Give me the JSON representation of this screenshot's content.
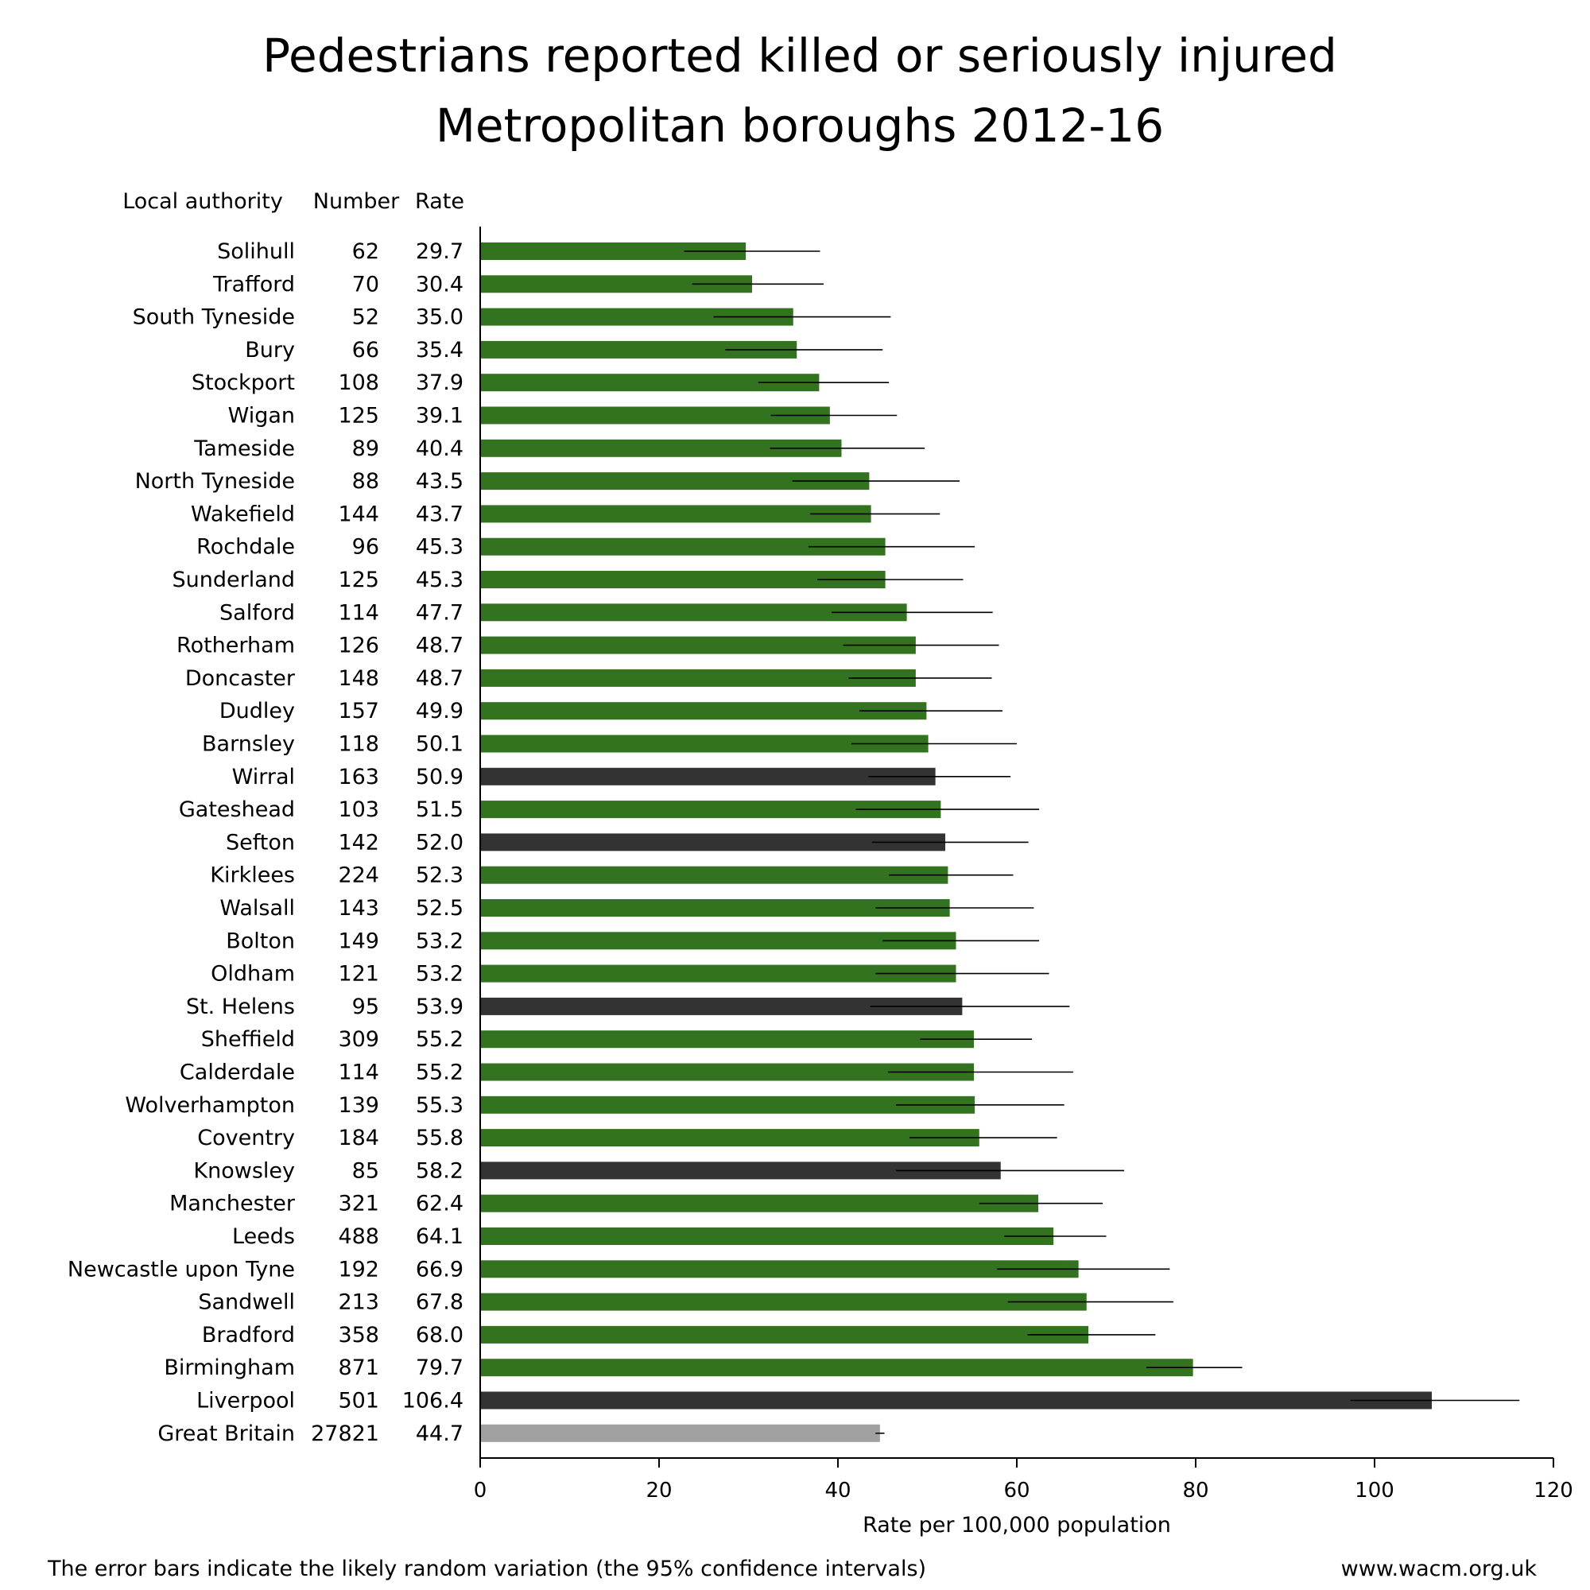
{
  "chart_data": {
    "type": "bar",
    "orientation": "horizontal",
    "title": "Pedestrians reported killed or seriously injured",
    "subtitle": "Metropolitan boroughs 2012-16",
    "columns": {
      "authority": "Local authority",
      "number": "Number",
      "rate": "Rate"
    },
    "xlabel": "Rate per 100,000 population",
    "xlim": [
      0,
      120
    ],
    "xticks": [
      "0",
      "20",
      "40",
      "60",
      "80",
      "100",
      "120"
    ],
    "grid": false,
    "legend": "none",
    "colors": {
      "borough": "#33731f",
      "highlighted": "#333333",
      "national": "#a0a0a0",
      "error_bar": "#000000"
    },
    "rows": [
      {
        "name": "Solihull",
        "number": "62",
        "rate": 29.7,
        "rate_label": "29.7",
        "ci": [
          22.8,
          38.0
        ],
        "group": "borough"
      },
      {
        "name": "Trafford",
        "number": "70",
        "rate": 30.4,
        "rate_label": "30.4",
        "ci": [
          23.7,
          38.4
        ],
        "group": "borough"
      },
      {
        "name": "South Tyneside",
        "number": "52",
        "rate": 35.0,
        "rate_label": "35.0",
        "ci": [
          26.1,
          45.9
        ],
        "group": "borough"
      },
      {
        "name": "Bury",
        "number": "66",
        "rate": 35.4,
        "rate_label": "35.4",
        "ci": [
          27.4,
          45.0
        ],
        "group": "borough"
      },
      {
        "name": "Stockport",
        "number": "108",
        "rate": 37.9,
        "rate_label": "37.9",
        "ci": [
          31.1,
          45.7
        ],
        "group": "borough"
      },
      {
        "name": "Wigan",
        "number": "125",
        "rate": 39.1,
        "rate_label": "39.1",
        "ci": [
          32.5,
          46.6
        ],
        "group": "borough"
      },
      {
        "name": "Tameside",
        "number": "89",
        "rate": 40.4,
        "rate_label": "40.4",
        "ci": [
          32.4,
          49.7
        ],
        "group": "borough"
      },
      {
        "name": "North Tyneside",
        "number": "88",
        "rate": 43.5,
        "rate_label": "43.5",
        "ci": [
          34.9,
          53.6
        ],
        "group": "borough"
      },
      {
        "name": "Wakefield",
        "number": "144",
        "rate": 43.7,
        "rate_label": "43.7",
        "ci": [
          36.9,
          51.4
        ],
        "group": "borough"
      },
      {
        "name": "Rochdale",
        "number": "96",
        "rate": 45.3,
        "rate_label": "45.3",
        "ci": [
          36.7,
          55.3
        ],
        "group": "borough"
      },
      {
        "name": "Sunderland",
        "number": "125",
        "rate": 45.3,
        "rate_label": "45.3",
        "ci": [
          37.7,
          54.0
        ],
        "group": "borough"
      },
      {
        "name": "Salford",
        "number": "114",
        "rate": 47.7,
        "rate_label": "47.7",
        "ci": [
          39.3,
          57.3
        ],
        "group": "borough"
      },
      {
        "name": "Rotherham",
        "number": "126",
        "rate": 48.7,
        "rate_label": "48.7",
        "ci": [
          40.6,
          58.0
        ],
        "group": "borough"
      },
      {
        "name": "Doncaster",
        "number": "148",
        "rate": 48.7,
        "rate_label": "48.7",
        "ci": [
          41.2,
          57.2
        ],
        "group": "borough"
      },
      {
        "name": "Dudley",
        "number": "157",
        "rate": 49.9,
        "rate_label": "49.9",
        "ci": [
          42.4,
          58.4
        ],
        "group": "borough"
      },
      {
        "name": "Barnsley",
        "number": "118",
        "rate": 50.1,
        "rate_label": "50.1",
        "ci": [
          41.5,
          60.0
        ],
        "group": "borough"
      },
      {
        "name": "Wirral",
        "number": "163",
        "rate": 50.9,
        "rate_label": "50.9",
        "ci": [
          43.4,
          59.3
        ],
        "group": "highlighted"
      },
      {
        "name": "Gateshead",
        "number": "103",
        "rate": 51.5,
        "rate_label": "51.5",
        "ci": [
          42.0,
          62.5
        ],
        "group": "borough"
      },
      {
        "name": "Sefton",
        "number": "142",
        "rate": 52.0,
        "rate_label": "52.0",
        "ci": [
          43.8,
          61.3
        ],
        "group": "highlighted"
      },
      {
        "name": "Kirklees",
        "number": "224",
        "rate": 52.3,
        "rate_label": "52.3",
        "ci": [
          45.7,
          59.6
        ],
        "group": "borough"
      },
      {
        "name": "Walsall",
        "number": "143",
        "rate": 52.5,
        "rate_label": "52.5",
        "ci": [
          44.2,
          61.9
        ],
        "group": "borough"
      },
      {
        "name": "Bolton",
        "number": "149",
        "rate": 53.2,
        "rate_label": "53.2",
        "ci": [
          45.0,
          62.5
        ],
        "group": "borough"
      },
      {
        "name": "Oldham",
        "number": "121",
        "rate": 53.2,
        "rate_label": "53.2",
        "ci": [
          44.2,
          63.6
        ],
        "group": "borough"
      },
      {
        "name": "St. Helens",
        "number": "95",
        "rate": 53.9,
        "rate_label": "53.9",
        "ci": [
          43.6,
          65.9
        ],
        "group": "highlighted"
      },
      {
        "name": "Sheffield",
        "number": "309",
        "rate": 55.2,
        "rate_label": "55.2",
        "ci": [
          49.2,
          61.7
        ],
        "group": "borough"
      },
      {
        "name": "Calderdale",
        "number": "114",
        "rate": 55.2,
        "rate_label": "55.2",
        "ci": [
          45.6,
          66.3
        ],
        "group": "borough"
      },
      {
        "name": "Wolverhampton",
        "number": "139",
        "rate": 55.3,
        "rate_label": "55.3",
        "ci": [
          46.5,
          65.3
        ],
        "group": "borough"
      },
      {
        "name": "Coventry",
        "number": "184",
        "rate": 55.8,
        "rate_label": "55.8",
        "ci": [
          48.0,
          64.5
        ],
        "group": "borough"
      },
      {
        "name": "Knowsley",
        "number": "85",
        "rate": 58.2,
        "rate_label": "58.2",
        "ci": [
          46.5,
          72.0
        ],
        "group": "highlighted"
      },
      {
        "name": "Manchester",
        "number": "321",
        "rate": 62.4,
        "rate_label": "62.4",
        "ci": [
          55.8,
          69.6
        ],
        "group": "borough"
      },
      {
        "name": "Leeds",
        "number": "488",
        "rate": 64.1,
        "rate_label": "64.1",
        "ci": [
          58.6,
          70.0
        ],
        "group": "borough"
      },
      {
        "name": "Newcastle upon Tyne",
        "number": "192",
        "rate": 66.9,
        "rate_label": "66.9",
        "ci": [
          57.8,
          77.1
        ],
        "group": "borough"
      },
      {
        "name": "Sandwell",
        "number": "213",
        "rate": 67.8,
        "rate_label": "67.8",
        "ci": [
          59.0,
          77.5
        ],
        "group": "borough"
      },
      {
        "name": "Bradford",
        "number": "358",
        "rate": 68.0,
        "rate_label": "68.0",
        "ci": [
          61.2,
          75.5
        ],
        "group": "borough"
      },
      {
        "name": "Birmingham",
        "number": "871",
        "rate": 79.7,
        "rate_label": "79.7",
        "ci": [
          74.5,
          85.2
        ],
        "group": "borough"
      },
      {
        "name": "Liverpool",
        "number": "501",
        "rate": 106.4,
        "rate_label": "106.4",
        "ci": [
          97.3,
          116.2
        ],
        "group": "highlighted"
      },
      {
        "name": "Great Britain",
        "number": "27821",
        "rate": 44.7,
        "rate_label": "44.7",
        "ci": [
          44.2,
          45.2
        ],
        "group": "national"
      }
    ]
  },
  "footer": {
    "note": "The error bars indicate the likely random variation (the 95% confidence intervals)",
    "source": "www.wacm.org.uk"
  }
}
